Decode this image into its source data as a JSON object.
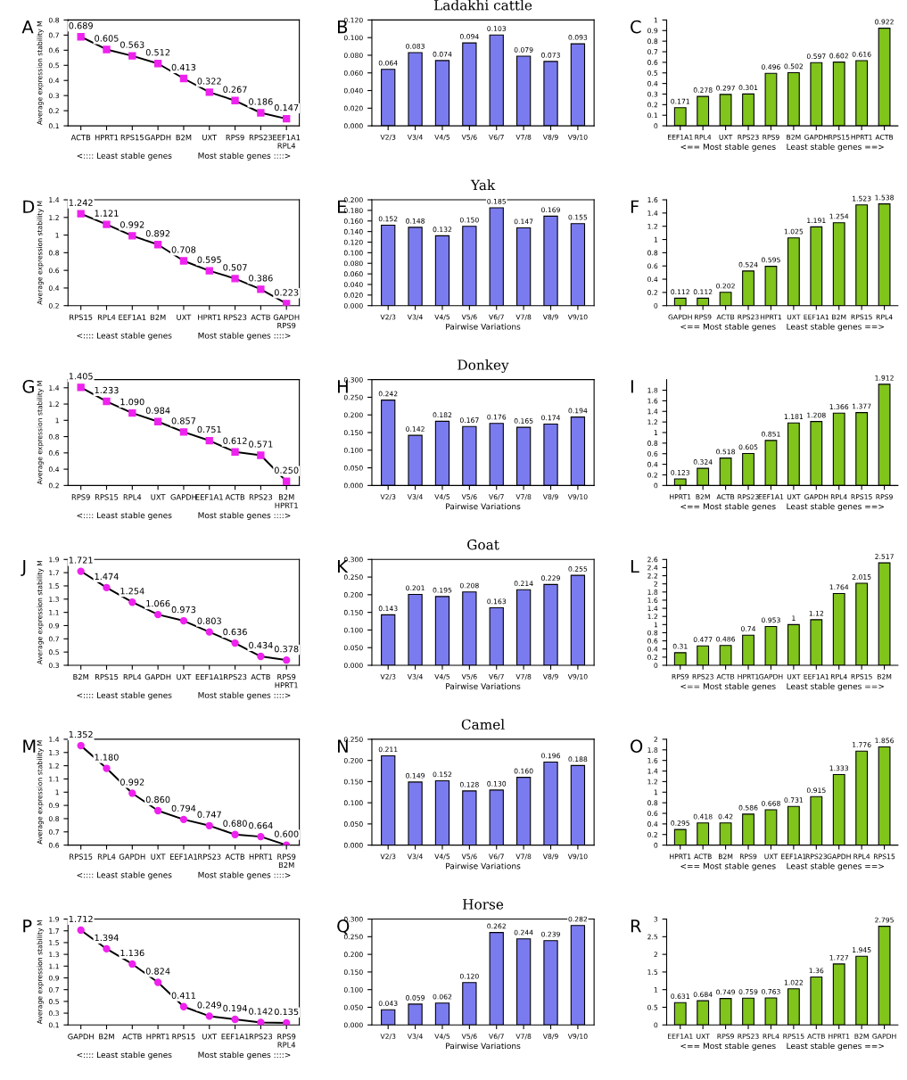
{
  "chart_data": [
    {
      "type": "line",
      "annotations": [
        "A"
      ],
      "ylabel": "Average expression stability M",
      "xlabel": "<:::: Least stable genes          Most stable genes ::::>",
      "categories": [
        "ACTB",
        "HPRT1",
        "RPS15",
        "GAPDH",
        "B2M",
        "UXT",
        "RPS9",
        "RPS23",
        "EEF1A1\nRPL4"
      ],
      "marker": "square",
      "ylim": [
        0.1,
        0.8
      ],
      "yticks": [
        0.1,
        0.2,
        0.3,
        0.4,
        0.5,
        0.6,
        0.7,
        0.8
      ],
      "series": [
        {
          "color": "#ee22ee",
          "values": [
            0.689,
            0.605,
            0.563,
            0.512,
            0.413,
            0.322,
            0.267,
            0.186,
            0.147
          ],
          "value_labels": [
            "0.689",
            "0.605",
            "0.563",
            "0.512",
            "0.413",
            "0.322",
            "0.267",
            "0.186",
            "0.147"
          ]
        }
      ]
    },
    {
      "type": "bar",
      "title": "Ladakhi cattle",
      "annotations": [
        "B"
      ],
      "categories": [
        "V2/3",
        "V3/4",
        "V4/5",
        "V5/6",
        "V6/7",
        "V7/8",
        "V8/9",
        "V9/10"
      ],
      "color": "#7b7bf0",
      "ylim": [
        0,
        0.12
      ],
      "yticks": [
        {
          "value": 0,
          "label": "0.000"
        },
        {
          "value": 0.02,
          "label": "0.020"
        },
        {
          "value": 0.04,
          "label": "0.040"
        },
        {
          "value": 0.06,
          "label": "0.060"
        },
        {
          "value": 0.08,
          "label": "0.080"
        },
        {
          "value": 0.1,
          "label": "0.100"
        },
        {
          "value": 0.12,
          "label": "0.120"
        }
      ],
      "values": [
        0.064,
        0.083,
        0.074,
        0.094,
        0.103,
        0.079,
        0.073,
        0.093
      ],
      "value_labels": [
        "0.064",
        "0.083",
        "0.074",
        "0.094",
        "0.103",
        "0.079",
        "0.073",
        "0.093"
      ]
    },
    {
      "type": "bar",
      "annotations": [
        "C"
      ],
      "xlabel": "<== Most stable genes    Least stable genes ==>",
      "categories": [
        "EEF1A1",
        "RPL4",
        "UXT",
        "RPS23",
        "RPS9",
        "B2M",
        "GAPDH",
        "RPS15",
        "HPRT1",
        "ACTB"
      ],
      "color": "#80c41c",
      "ylim": [
        0,
        1
      ],
      "yticks": [
        0,
        0.1,
        0.2,
        0.3,
        0.4,
        0.5,
        0.6,
        0.7,
        0.8,
        0.9,
        1
      ],
      "values": [
        0.171,
        0.278,
        0.297,
        0.301,
        0.496,
        0.502,
        0.597,
        0.602,
        0.616,
        0.922
      ],
      "value_labels": [
        "0.171",
        "0.278",
        "0.297",
        "0.301",
        "0.496",
        "0.502",
        "0.597",
        "0.602",
        "0.616",
        "0.922"
      ]
    },
    {
      "type": "line",
      "annotations": [
        "D"
      ],
      "ylabel": "Average expression stability M",
      "xlabel": "<:::: Least stable genes          Most stable genes ::::>",
      "categories": [
        "RPS15",
        "RPL4",
        "EEF1A1",
        "B2M",
        "UXT",
        "HPRT1",
        "RPS23",
        "ACTB",
        "GAPDH\nRPS9"
      ],
      "marker": "square",
      "ylim": [
        0.2,
        1.4
      ],
      "yticks": [
        0.2,
        0.4,
        0.6,
        0.8,
        1,
        1.2,
        1.4
      ],
      "series": [
        {
          "color": "#ee22ee",
          "values": [
            1.242,
            1.121,
            0.992,
            0.892,
            0.708,
            0.595,
            0.507,
            0.386,
            0.223
          ],
          "value_labels": [
            "1.242",
            "1.121",
            "0.992",
            "0.892",
            "0.708",
            "0.595",
            "0.507",
            "0.386",
            "0.223"
          ]
        }
      ]
    },
    {
      "type": "bar",
      "title": "Yak",
      "annotations": [
        "E"
      ],
      "xlabel": "Pairwise Variations",
      "categories": [
        "V2/3",
        "V3/4",
        "V4/5",
        "V5/6",
        "V6/7",
        "V7/8",
        "V8/9",
        "V9/10"
      ],
      "color": "#7b7bf0",
      "ylim": [
        0,
        0.2
      ],
      "yticks": [
        {
          "value": 0,
          "label": "0.000"
        },
        {
          "value": 0.02,
          "label": "0.020"
        },
        {
          "value": 0.04,
          "label": "0.040"
        },
        {
          "value": 0.06,
          "label": "0.060"
        },
        {
          "value": 0.08,
          "label": "0.080"
        },
        {
          "value": 0.1,
          "label": "0.100"
        },
        {
          "value": 0.12,
          "label": "0.120"
        },
        {
          "value": 0.14,
          "label": "0.140"
        },
        {
          "value": 0.16,
          "label": "0.160"
        },
        {
          "value": 0.18,
          "label": "0.180"
        },
        {
          "value": 0.2,
          "label": "0.200"
        }
      ],
      "values": [
        0.152,
        0.148,
        0.132,
        0.15,
        0.185,
        0.147,
        0.169,
        0.155
      ],
      "value_labels": [
        "0.152",
        "0.148",
        "0.132",
        "0.150",
        "0.185",
        "0.147",
        "0.169",
        "0.155"
      ]
    },
    {
      "type": "bar",
      "annotations": [
        "F"
      ],
      "xlabel": "<== Most stable genes    Least stable genes ==>",
      "categories": [
        "GAPDH",
        "RPS9",
        "ACTB",
        "RPS23",
        "HPRT1",
        "UXT",
        "EEF1A1",
        "B2M",
        "RPS15",
        "RPL4"
      ],
      "color": "#80c41c",
      "ylim": [
        0,
        1.6
      ],
      "yticks": [
        0,
        0.2,
        0.4,
        0.6,
        0.8,
        1,
        1.2,
        1.4,
        1.6
      ],
      "values": [
        0.112,
        0.112,
        0.202,
        0.524,
        0.595,
        1.025,
        1.191,
        1.254,
        1.523,
        1.538
      ],
      "value_labels": [
        "0.112",
        "0.112",
        "0.202",
        "0.524",
        "0.595",
        "1.025",
        "1.191",
        "1.254",
        "1.523",
        "1.538"
      ]
    },
    {
      "type": "line",
      "annotations": [
        "G"
      ],
      "ylabel": "Average expression stability M",
      "xlabel": "<:::: Least stable genes          Most stable genes ::::>",
      "categories": [
        "RPS9",
        "RPS15",
        "RPL4",
        "UXT",
        "GAPDH",
        "EEF1A1",
        "ACTB",
        "RPS23",
        "B2M\nHPRT1"
      ],
      "marker": "square",
      "ylim": [
        0.2,
        1.5
      ],
      "yticks": [
        0.2,
        0.4,
        0.6,
        0.8,
        1,
        1.2,
        1.4
      ],
      "series": [
        {
          "color": "#ee22ee",
          "values": [
            1.405,
            1.233,
            1.09,
            0.984,
            0.857,
            0.751,
            0.612,
            0.571,
            0.25
          ],
          "value_labels": [
            "1.405",
            "1.233",
            "1.090",
            "0.984",
            "0.857",
            "0.751",
            "0.612",
            "0.571",
            "0.250"
          ]
        }
      ]
    },
    {
      "type": "bar",
      "title": "Donkey",
      "annotations": [
        "H"
      ],
      "xlabel": "Pairwise Variations",
      "categories": [
        "V2/3",
        "V3/4",
        "V4/5",
        "V5/6",
        "V6/7",
        "V7/8",
        "V8/9",
        "V9/10"
      ],
      "color": "#7b7bf0",
      "ylim": [
        0,
        0.3
      ],
      "yticks": [
        {
          "value": 0,
          "label": "0.000"
        },
        {
          "value": 0.05,
          "label": "0.050"
        },
        {
          "value": 0.1,
          "label": "0.100"
        },
        {
          "value": 0.15,
          "label": "0.150"
        },
        {
          "value": 0.2,
          "label": "0.200"
        },
        {
          "value": 0.25,
          "label": "0.250"
        },
        {
          "value": 0.3,
          "label": "0.300"
        }
      ],
      "values": [
        0.242,
        0.142,
        0.182,
        0.167,
        0.176,
        0.165,
        0.174,
        0.194
      ],
      "value_labels": [
        "0.242",
        "0.142",
        "0.182",
        "0.167",
        "0.176",
        "0.165",
        "0.174",
        "0.194"
      ]
    },
    {
      "type": "bar",
      "annotations": [
        "I"
      ],
      "xlabel": "<== Most stable genes    Least stable genes ==>",
      "categories": [
        "HPRT1",
        "B2M",
        "ACTB",
        "RPS23",
        "EEF1A1",
        "UXT",
        "GAPDH",
        "RPL4",
        "RPS15",
        "RPS9"
      ],
      "color": "#80c41c",
      "ylim": [
        0,
        2
      ],
      "yticks": [
        0,
        0.2,
        0.4,
        0.6,
        0.8,
        1,
        1.2,
        1.4,
        1.6,
        1.8
      ],
      "values": [
        0.123,
        0.324,
        0.518,
        0.605,
        0.851,
        1.181,
        1.208,
        1.366,
        1.377,
        1.912
      ],
      "value_labels": [
        "0.123",
        "0.324",
        "0.518",
        "0.605",
        "0.851",
        "1.181",
        "1.208",
        "1.366",
        "1.377",
        "1.912"
      ]
    },
    {
      "type": "line",
      "annotations": [
        "J"
      ],
      "ylabel": "Average expression stability M",
      "xlabel": "<:::: Least stable genes          Most stable genes ::::>",
      "categories": [
        "B2M",
        "RPS15",
        "RPL4",
        "GAPDH",
        "UXT",
        "EEF1A1",
        "RPS23",
        "ACTB",
        "RPS9\nHPRT1"
      ],
      "marker": "circle",
      "ylim": [
        0.3,
        1.9
      ],
      "yticks": [
        0.3,
        0.5,
        0.7,
        0.9,
        1.1,
        1.3,
        1.5,
        1.7,
        1.9
      ],
      "series": [
        {
          "color": "#ee22ee",
          "values": [
            1.721,
            1.474,
            1.254,
            1.066,
            0.973,
            0.803,
            0.636,
            0.434,
            0.378
          ],
          "value_labels": [
            "1.721",
            "1.474",
            "1.254",
            "1.066",
            "0.973",
            "0.803",
            "0.636",
            "0.434",
            "0.378"
          ]
        }
      ]
    },
    {
      "type": "bar",
      "title": "Goat",
      "annotations": [
        "K"
      ],
      "xlabel": "Pairwise Variations",
      "categories": [
        "V2/3",
        "V3/4",
        "V4/5",
        "V5/6",
        "V6/7",
        "V7/8",
        "V8/9",
        "V9/10"
      ],
      "color": "#7b7bf0",
      "ylim": [
        0,
        0.3
      ],
      "yticks": [
        {
          "value": 0,
          "label": "0.000"
        },
        {
          "value": 0.05,
          "label": "0.050"
        },
        {
          "value": 0.1,
          "label": "0.100"
        },
        {
          "value": 0.15,
          "label": "0.150"
        },
        {
          "value": 0.2,
          "label": "0.200"
        },
        {
          "value": 0.25,
          "label": "0.250"
        },
        {
          "value": 0.3,
          "label": "0.300"
        }
      ],
      "values": [
        0.143,
        0.201,
        0.195,
        0.208,
        0.163,
        0.214,
        0.229,
        0.255
      ],
      "value_labels": [
        "0.143",
        "0.201",
        "0.195",
        "0.208",
        "0.163",
        "0.214",
        "0.229",
        "0.255"
      ]
    },
    {
      "type": "bar",
      "annotations": [
        "L"
      ],
      "xlabel": "<== Most stable genes    Least stable genes ==>",
      "categories": [
        "RPS9",
        "RPS23",
        "ACTB",
        "HPRT1",
        "GAPDH",
        "UXT",
        "EEF1A1",
        "RPL4",
        "RPS15",
        "B2M"
      ],
      "color": "#80c41c",
      "ylim": [
        0,
        2.6
      ],
      "yticks": [
        0,
        0.2,
        0.4,
        0.6,
        0.8,
        1,
        1.2,
        1.4,
        1.6,
        1.8,
        2,
        2.2,
        2.4,
        2.6
      ],
      "values": [
        0.31,
        0.477,
        0.486,
        0.74,
        0.953,
        1,
        1.12,
        1.764,
        2.015,
        2.517
      ],
      "value_labels": [
        "0.31",
        "0.477",
        "0.486",
        "0.74",
        "0.953",
        "1",
        "1.12",
        "1.764",
        "2.015",
        "2.517"
      ]
    },
    {
      "type": "line",
      "annotations": [
        "M"
      ],
      "ylabel": "Average expression stability M",
      "xlabel": "<:::: Least stable genes          Most stable genes ::::>",
      "categories": [
        "RPS15",
        "RPL4",
        "GAPDH",
        "UXT",
        "EEF1A1",
        "RPS23",
        "ACTB",
        "HPRT1",
        "RPS9\nB2M"
      ],
      "marker": "circle",
      "ylim": [
        0.6,
        1.4
      ],
      "yticks": [
        0.6,
        0.7,
        0.8,
        0.9,
        1,
        1.1,
        1.2,
        1.3,
        1.4
      ],
      "series": [
        {
          "color": "#ee22ee",
          "values": [
            1.352,
            1.18,
            0.992,
            0.86,
            0.794,
            0.747,
            0.68,
            0.664,
            0.6
          ],
          "value_labels": [
            "1.352",
            "1.180",
            "0.992",
            "0.860",
            "0.794",
            "0.747",
            "0.680",
            "0.664",
            "0.600"
          ]
        }
      ]
    },
    {
      "type": "bar",
      "title": "Camel",
      "annotations": [
        "N"
      ],
      "xlabel": "Pairwise Variations",
      "categories": [
        "V2/3",
        "V3/4",
        "V4/5",
        "V5/6",
        "V6/7",
        "V7/8",
        "V8/9",
        "V9/10"
      ],
      "color": "#7b7bf0",
      "ylim": [
        0,
        0.25
      ],
      "yticks": [
        {
          "value": 0,
          "label": "0.000"
        },
        {
          "value": 0.05,
          "label": "0.050"
        },
        {
          "value": 0.1,
          "label": "0.100"
        },
        {
          "value": 0.15,
          "label": "0.150"
        },
        {
          "value": 0.2,
          "label": "0.200"
        },
        {
          "value": 0.25,
          "label": "0.250"
        }
      ],
      "values": [
        0.211,
        0.149,
        0.152,
        0.128,
        0.13,
        0.16,
        0.196,
        0.188
      ],
      "value_labels": [
        "0.211",
        "0.149",
        "0.152",
        "0.128",
        "0.130",
        "0.160",
        "0.196",
        "0.188"
      ]
    },
    {
      "type": "bar",
      "annotations": [
        "O"
      ],
      "xlabel": "<== Most stable genes    Least stable genes ==>",
      "categories": [
        "HPRT1",
        "ACTB",
        "B2M",
        "RPS9",
        "UXT",
        "EEF1A1",
        "RPS23",
        "GAPDH",
        "RPL4",
        "RPS15"
      ],
      "color": "#80c41c",
      "ylim": [
        0,
        2
      ],
      "yticks": [
        0,
        0.2,
        0.4,
        0.6,
        0.8,
        1,
        1.2,
        1.4,
        1.6,
        1.8,
        2
      ],
      "values": [
        0.295,
        0.418,
        0.42,
        0.586,
        0.668,
        0.731,
        0.915,
        1.333,
        1.776,
        1.856
      ],
      "value_labels": [
        "0.295",
        "0.418",
        "0.42",
        "0.586",
        "0.668",
        "0.731",
        "0.915",
        "1.333",
        "1.776",
        "1.856"
      ]
    },
    {
      "type": "line",
      "annotations": [
        "P"
      ],
      "ylabel": "Average expression stability M",
      "xlabel": "<:::: Least stable genes          Most stable genes ::::>",
      "categories": [
        "GAPDH",
        "B2M",
        "ACTB",
        "HPRT1",
        "RPS15",
        "UXT",
        "EEF1A1",
        "RPS23",
        "RPS9\nRPL4"
      ],
      "marker": "circle",
      "ylim": [
        0.1,
        1.9
      ],
      "yticks": [
        0.1,
        0.3,
        0.5,
        0.7,
        0.9,
        1.1,
        1.3,
        1.5,
        1.7,
        1.9
      ],
      "series": [
        {
          "color": "#ee22ee",
          "values": [
            1.712,
            1.394,
            1.136,
            0.824,
            0.411,
            0.249,
            0.194,
            0.142,
            0.135
          ],
          "value_labels": [
            "1.712",
            "1.394",
            "1.136",
            "0.824",
            "0.411",
            "0.249",
            "0.194",
            "0.142",
            "0.135"
          ]
        }
      ]
    },
    {
      "type": "bar",
      "title": "Horse",
      "annotations": [
        "Q"
      ],
      "xlabel": "Pairwise Variations",
      "categories": [
        "V2/3",
        "V3/4",
        "V4/5",
        "V5/6",
        "V6/7",
        "V7/8",
        "V8/9",
        "V9/10"
      ],
      "color": "#7b7bf0",
      "ylim": [
        0,
        0.3
      ],
      "yticks": [
        {
          "value": 0,
          "label": "0.000"
        },
        {
          "value": 0.05,
          "label": "0.050"
        },
        {
          "value": 0.1,
          "label": "0.100"
        },
        {
          "value": 0.15,
          "label": "0.150"
        },
        {
          "value": 0.2,
          "label": "0.200"
        },
        {
          "value": 0.25,
          "label": "0.250"
        },
        {
          "value": 0.3,
          "label": "0.300"
        }
      ],
      "values": [
        0.043,
        0.059,
        0.062,
        0.12,
        0.262,
        0.244,
        0.239,
        0.282
      ],
      "value_labels": [
        "0.043",
        "0.059",
        "0.062",
        "0.120",
        "0.262",
        "0.244",
        "0.239",
        "0.282"
      ]
    },
    {
      "type": "bar",
      "annotations": [
        "R"
      ],
      "xlabel": "<== Most stable genes    Least stable genes ==>",
      "categories": [
        "EEF1A1",
        "UXT",
        "RPS9",
        "RPS23",
        "RPL4",
        "RPS15",
        "ACTB",
        "HPRT1",
        "B2M",
        "GAPDH"
      ],
      "color": "#80c41c",
      "ylim": [
        0,
        3
      ],
      "yticks": [
        0,
        0.5,
        1,
        1.5,
        2,
        2.5,
        3
      ],
      "values": [
        0.631,
        0.684,
        0.749,
        0.759,
        0.763,
        1.022,
        1.36,
        1.727,
        1.945,
        2.795
      ],
      "value_labels": [
        "0.631",
        "0.684",
        "0.749",
        "0.759",
        "0.763",
        "1.022",
        "1.36",
        "1.727",
        "1.945",
        "2.795"
      ]
    }
  ]
}
